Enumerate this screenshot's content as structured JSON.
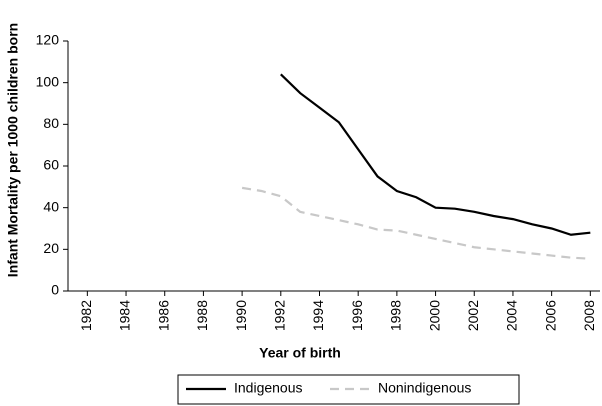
{
  "chart_data": {
    "type": "line",
    "xlabel": "Year of birth",
    "ylabel": "Infant Mortality per 1000 children born",
    "x": [
      1990,
      1991,
      1992,
      1993,
      1994,
      1995,
      1996,
      1997,
      1998,
      1999,
      2000,
      2001,
      2002,
      2003,
      2004,
      2005,
      2006,
      2007,
      2008
    ],
    "series": [
      {
        "name": "Indigenous",
        "color": "#000000",
        "dash": "solid",
        "values": [
          null,
          null,
          104,
          95,
          88,
          81,
          68,
          55,
          48,
          45,
          40,
          39.5,
          38,
          36,
          34.5,
          32,
          30,
          27,
          28
        ]
      },
      {
        "name": "Nonindigenous",
        "color": "#c8c8c8",
        "dash": "dashed",
        "values": [
          49.5,
          48,
          45.5,
          38,
          36,
          34,
          32,
          29.5,
          29,
          27,
          25,
          23,
          21,
          20,
          19,
          18,
          17,
          16,
          15.5
        ]
      }
    ],
    "xlim": [
      1981,
      2008.5
    ],
    "xticks": [
      1982,
      1984,
      1986,
      1988,
      1990,
      1992,
      1994,
      1996,
      1998,
      2000,
      2002,
      2004,
      2006,
      2008
    ],
    "ylim": [
      0,
      120
    ],
    "yticks": [
      0,
      20,
      40,
      60,
      80,
      100,
      120
    ],
    "grid": false,
    "legend": "bottom"
  }
}
